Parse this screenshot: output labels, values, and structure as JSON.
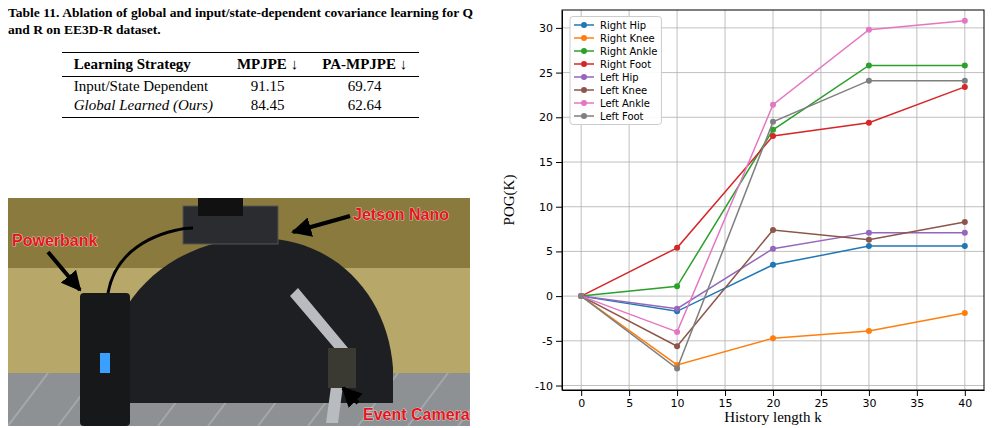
{
  "table": {
    "caption": "Table 11. Ablation of global and input/state-dependent covariance learning for Q and R on EE3D-R dataset.",
    "columns": [
      "Learning Strategy",
      "MPJPE ↓",
      "PA-MPJPE ↓"
    ],
    "rows": [
      [
        "Input/State Dependent",
        91.15,
        69.74
      ],
      [
        "Global Learned (Ours)",
        84.45,
        62.64
      ]
    ]
  },
  "photo": {
    "labels": [
      "Jetson Nano",
      "Powerbank",
      "Event Camera"
    ]
  },
  "chart_data": {
    "type": "line",
    "x_label": "History length k",
    "y_label": "POG(K)",
    "x": [
      0,
      10,
      20,
      30,
      40
    ],
    "series": [
      {
        "name": "Right Hip",
        "color": "#1f77b4",
        "values": [
          0,
          -1.7,
          3.5,
          5.6,
          5.6
        ]
      },
      {
        "name": "Right Knee",
        "color": "#ff7f0e",
        "values": [
          0,
          -7.7,
          -4.7,
          -3.9,
          -1.9
        ]
      },
      {
        "name": "Right Ankle",
        "color": "#2ca02c",
        "values": [
          0,
          1.1,
          18.6,
          25.8,
          25.8
        ]
      },
      {
        "name": "Right Foot",
        "color": "#d62728",
        "values": [
          0,
          5.4,
          17.9,
          19.4,
          23.4
        ]
      },
      {
        "name": "Left Hip",
        "color": "#9467bd",
        "values": [
          0,
          -1.4,
          5.3,
          7.1,
          7.1
        ]
      },
      {
        "name": "Left Knee",
        "color": "#8c564b",
        "values": [
          0,
          -5.6,
          7.4,
          6.3,
          8.3
        ]
      },
      {
        "name": "Left Ankle",
        "color": "#e377c2",
        "values": [
          0,
          -4.0,
          21.4,
          29.8,
          30.8
        ]
      },
      {
        "name": "Left Foot",
        "color": "#7f7f7f",
        "values": [
          0,
          -8.1,
          19.5,
          24.1,
          24.1
        ]
      }
    ],
    "xlim": [
      -2,
      42
    ],
    "ylim": [
      -10.5,
      32
    ],
    "xticks": [
      0,
      5,
      10,
      15,
      20,
      25,
      30,
      35,
      40
    ],
    "yticks": [
      -10,
      -5,
      0,
      5,
      10,
      15,
      20,
      25,
      30
    ],
    "grid": true,
    "legend": "upper left",
    "marker": "circle",
    "line_style": "solid"
  }
}
